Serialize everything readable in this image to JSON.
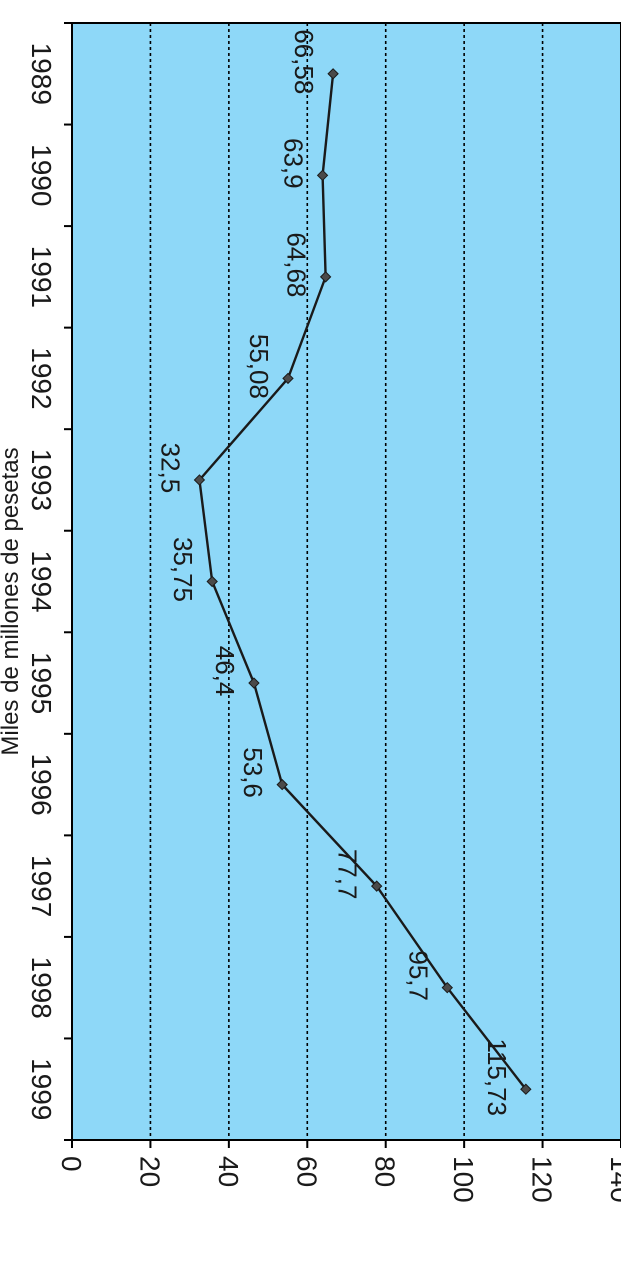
{
  "colors": {
    "plot_background": "#8ed8f8",
    "line": "#1a1a1a",
    "marker": "#4a4a4a",
    "grid": "#000000",
    "text": "#1a1a1a"
  },
  "chart_data": {
    "type": "line",
    "title": "",
    "xlabel": "",
    "ylabel": "Miles de millones de pesetas",
    "categories": [
      "1989",
      "1990",
      "1991",
      "1992",
      "1993",
      "1994",
      "1995",
      "1996",
      "1997",
      "1998",
      "1999"
    ],
    "series": [
      {
        "values": [
          66.58,
          63.9,
          64.68,
          55.08,
          32.5,
          35.75,
          46.4,
          53.6,
          77.7,
          95.7,
          115.73
        ],
        "data_labels": [
          "66,58",
          "63,9",
          "64,68",
          "55,08",
          "32,5",
          "35,75",
          "46,4",
          "53,6",
          "77,7",
          "95,7",
          "115,73"
        ]
      }
    ],
    "ylim": [
      0,
      140
    ],
    "yticks": [
      0,
      20,
      40,
      60,
      80,
      100,
      120,
      140
    ],
    "ytick_labels": [
      "0",
      "20",
      "40",
      "60",
      "80",
      "100",
      "120",
      "140"
    ],
    "grid": "dotted horizontal at 20, 40, 60, 80, 100, 120",
    "orientation": "rotated 90° clockwise"
  }
}
